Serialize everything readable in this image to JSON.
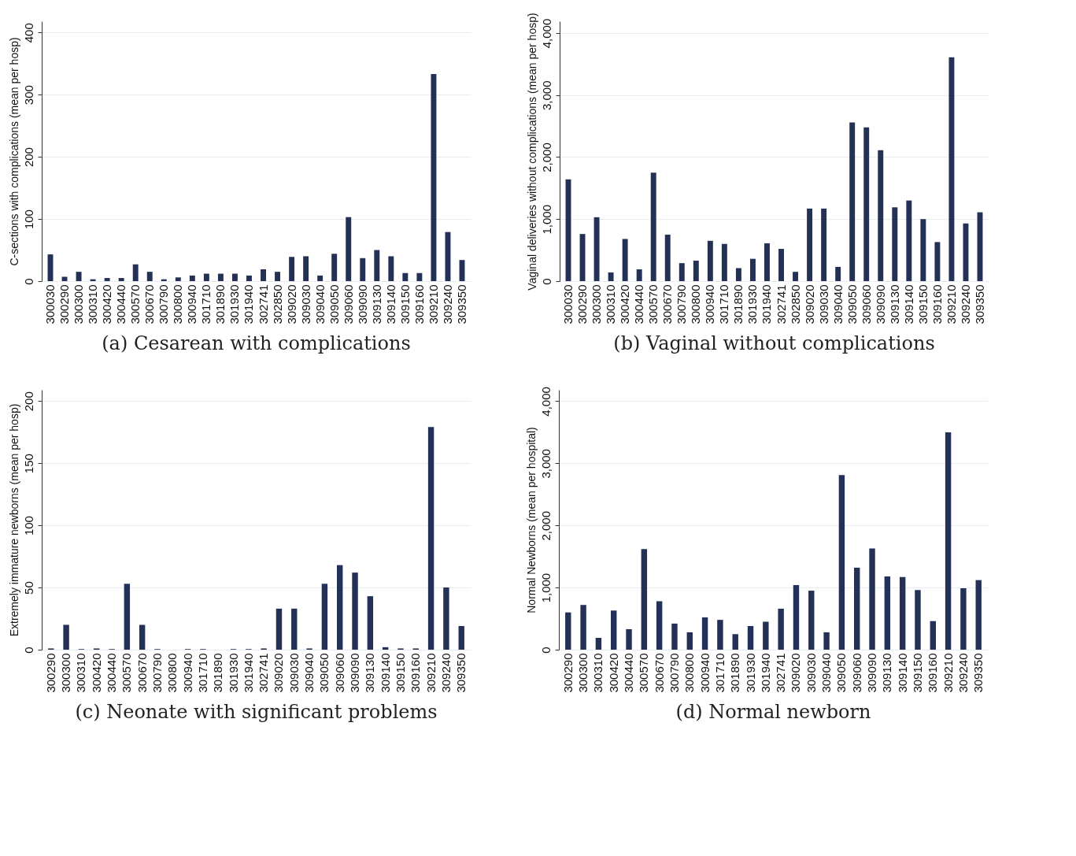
{
  "chart_data": [
    {
      "type": "bar",
      "title": "(a) Cesarean with complications",
      "ylabel": "C-sections with complications (mean per hosp)",
      "color": "#243156",
      "grid": "y",
      "ylim": [
        0,
        418
      ],
      "yticks": [
        0,
        100,
        200,
        300,
        400
      ],
      "categories": [
        "300030",
        "300290",
        "300300",
        "300310",
        "300420",
        "300440",
        "300570",
        "300670",
        "300790",
        "300800",
        "300940",
        "301710",
        "301890",
        "301930",
        "301940",
        "302741",
        "302850",
        "309020",
        "309030",
        "309040",
        "309050",
        "309060",
        "309090",
        "309130",
        "309140",
        "309150",
        "309160",
        "309210",
        "309240",
        "309350"
      ],
      "values": [
        43,
        7,
        15,
        3,
        5,
        5,
        27,
        15,
        3,
        6,
        9,
        12,
        12,
        12,
        9,
        19,
        15,
        39,
        40,
        9,
        44,
        103,
        37,
        50,
        40,
        13,
        13,
        333,
        79,
        34
      ]
    },
    {
      "type": "bar",
      "title": "(b) Vaginal without complications",
      "ylabel": "Vaginal deliveries without complications (mean per hosp)",
      "color": "#243156",
      "grid": "y",
      "ylim": [
        0,
        4190
      ],
      "yticks": [
        0,
        {
          "value": 1000,
          "label": "1,000"
        },
        {
          "value": 2000,
          "label": "2,000"
        },
        {
          "value": 3000,
          "label": "3,000"
        },
        {
          "value": 4000,
          "label": "4,000"
        }
      ],
      "categories": [
        "300030",
        "300290",
        "300300",
        "300310",
        "300420",
        "300440",
        "300570",
        "300670",
        "300790",
        "300800",
        "300940",
        "301710",
        "301890",
        "301930",
        "301940",
        "302741",
        "302850",
        "309020",
        "309030",
        "309040",
        "309050",
        "309060",
        "309090",
        "309130",
        "309140",
        "309150",
        "309160",
        "309210",
        "309240",
        "309350"
      ],
      "values": [
        1640,
        760,
        1030,
        140,
        680,
        190,
        1750,
        750,
        290,
        330,
        650,
        600,
        210,
        360,
        610,
        520,
        150,
        1170,
        1170,
        230,
        2560,
        2480,
        2110,
        1190,
        1300,
        1000,
        630,
        3610,
        930,
        1110
      ]
    },
    {
      "type": "bar",
      "title": "(c) Neonate with significant problems",
      "ylabel": "Extremely immature newborns (mean per hosp)",
      "color": "#243156",
      "grid": "y",
      "ylim": [
        0,
        209
      ],
      "yticks": [
        0,
        50,
        100,
        150,
        200
      ],
      "categories": [
        "300290",
        "300300",
        "300310",
        "300420",
        "300440",
        "300570",
        "300670",
        "300790",
        "300800",
        "300940",
        "301710",
        "301890",
        "301930",
        "301940",
        "302741",
        "309020",
        "309030",
        "309040",
        "309050",
        "309060",
        "309090",
        "309130",
        "309140",
        "309150",
        "309160",
        "309210",
        "309240",
        "309350"
      ],
      "values": [
        1,
        20,
        0.5,
        1,
        0.5,
        53,
        20,
        0.5,
        0,
        0.5,
        0.5,
        0,
        0.5,
        0.5,
        1,
        33,
        33,
        1,
        53,
        68,
        62,
        43,
        2,
        1,
        1,
        179,
        50,
        19
      ]
    },
    {
      "type": "bar",
      "title": "(d) Normal newborn",
      "ylabel": "Normal Newborns (mean per hospital)",
      "color": "#243156",
      "grid": "y",
      "ylim": [
        0,
        4183
      ],
      "yticks": [
        0,
        {
          "value": 1000,
          "label": "1,000"
        },
        {
          "value": 2000,
          "label": "2,000"
        },
        {
          "value": 3000,
          "label": "3,000"
        },
        {
          "value": 4000,
          "label": "4,000"
        }
      ],
      "categories": [
        "300290",
        "300300",
        "300310",
        "300420",
        "300440",
        "300570",
        "300670",
        "300790",
        "300800",
        "300940",
        "301710",
        "301890",
        "301930",
        "301940",
        "302741",
        "309020",
        "309030",
        "309040",
        "309050",
        "309060",
        "309090",
        "309130",
        "309140",
        "309150",
        "309160",
        "309210",
        "309240",
        "309350"
      ],
      "values": [
        600,
        720,
        190,
        630,
        330,
        1620,
        780,
        420,
        280,
        520,
        480,
        250,
        380,
        450,
        660,
        1040,
        950,
        280,
        2810,
        1320,
        1630,
        1180,
        1170,
        960,
        460,
        3500,
        990,
        1120
      ]
    }
  ]
}
